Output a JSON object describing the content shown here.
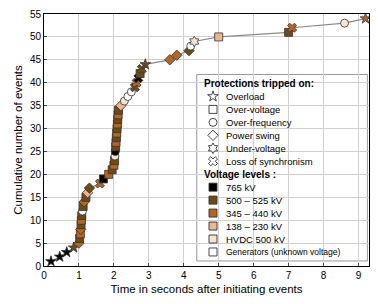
{
  "chart_data": {
    "type": "scatter",
    "xlabel": "Time in seconds after initiating events",
    "ylabel": "Cumulative number of events",
    "xlim": [
      0,
      9.3
    ],
    "xticks": [
      0,
      1,
      2,
      3,
      4,
      5,
      6,
      7,
      8,
      9
    ],
    "ylim": [
      0,
      55
    ],
    "yticks": [
      0,
      5,
      10,
      15,
      20,
      25,
      30,
      35,
      40,
      45,
      50,
      55
    ],
    "grid": true,
    "legend": "lower right",
    "color": "#8c8c8c",
    "line_style": "solid",
    "x": [
      0.2,
      0.45,
      0.65,
      0.85,
      1.0,
      1.02,
      1.04,
      1.05,
      1.06,
      1.07,
      1.08,
      1.1,
      1.12,
      1.15,
      1.2,
      1.25,
      1.3,
      1.6,
      1.7,
      1.85,
      1.95,
      2.0,
      2.02,
      2.03,
      2.04,
      2.05,
      2.06,
      2.07,
      2.08,
      2.09,
      2.1,
      2.11,
      2.12,
      2.13,
      2.2,
      2.3,
      2.4,
      2.5,
      2.6,
      2.65,
      2.7,
      2.75,
      2.8,
      2.9,
      3.6,
      3.8,
      4.15,
      4.2,
      4.3,
      5.0,
      7.0,
      7.1,
      8.6,
      9.2
    ],
    "values": [
      1,
      2,
      3,
      4,
      5,
      6,
      7,
      8,
      9,
      10,
      11,
      12,
      13,
      14,
      15,
      16,
      17,
      18,
      19,
      20,
      21,
      22,
      23,
      24,
      25,
      26,
      27,
      28,
      29,
      30,
      31,
      32,
      33,
      34,
      35,
      36,
      37,
      38,
      39,
      40,
      41,
      42,
      43,
      44,
      45,
      46,
      47,
      48,
      49,
      50,
      51,
      52,
      53,
      54
    ],
    "protection": [
      "Overload",
      "Overload",
      "Overload",
      "Overload",
      "Power swing",
      "Over-voltage",
      "Over-voltage",
      "Power swing",
      "Over-voltage",
      "Over-voltage",
      "Over-voltage",
      "Over-frequency",
      "Over-voltage",
      "Power swing",
      "Over-voltage",
      "Power swing",
      "Power swing",
      "Loss of synchronism",
      "Over-voltage",
      "Over-voltage",
      "Over-voltage",
      "Over-voltage",
      "Over-voltage",
      "Over-frequency",
      "Over-frequency",
      "Over-voltage",
      "Over-voltage",
      "Over-voltage",
      "Over-voltage",
      "Over-voltage",
      "Over-voltage",
      "Over-voltage",
      "Over-voltage",
      "Over-voltage",
      "Power swing",
      "Over-frequency",
      "Over-frequency",
      "Over-frequency",
      "Loss of synchronism",
      "Loss of synchronism",
      "Loss of synchronism",
      "Over-voltage",
      "Loss of synchronism",
      "Overload",
      "Power swing",
      "Power swing",
      "Power swing",
      "Over-frequency",
      "Under-voltage",
      "Over-voltage",
      "Over-voltage",
      "Loss of synchronism",
      "Over-frequency",
      "Overload"
    ],
    "colors": [
      "#000000",
      "#000000",
      "#000000",
      "#6e4b12",
      "#b8651e",
      "#6e4b12",
      "#b8651e",
      "#b8651e",
      "#6e4b12",
      "#b8651e",
      "#6e4b12",
      "#ffffff",
      "#6e4b12",
      "#b8651e",
      "#6e4b12",
      "#eeb48a",
      "#6e4b12",
      "#b8651e",
      "#000000",
      "#b8651e",
      "#6e4b12",
      "#b8651e",
      "#6e4b12",
      "#fbe3cf",
      "#000000",
      "#6e4b12",
      "#b8651e",
      "#6e4b12",
      "#b8651e",
      "#6e4b12",
      "#b8651e",
      "#6e4b12",
      "#b8651e",
      "#6e4b12",
      "#eeb48a",
      "#fbe3cf",
      "#ffffff",
      "#ffffff",
      "#6e4b12",
      "#b8651e",
      "#000000",
      "#6e4b12",
      "#6e4b12",
      "#6e4b12",
      "#b8651e",
      "#b8651e",
      "#6e4b12",
      "#ffffff",
      "#fbe3cf",
      "#eeb48a",
      "#6e4b12",
      "#b8651e",
      "#fbe3cf",
      "#b8651e"
    ],
    "protections_title": "Protections tripped on:",
    "protections": [
      {
        "name": "Overload",
        "marker": "star"
      },
      {
        "name": "Over-voltage",
        "marker": "square"
      },
      {
        "name": "Over-frequency",
        "marker": "circle"
      },
      {
        "name": "Power swing",
        "marker": "diamond"
      },
      {
        "name": "Under-voltage",
        "marker": "hexagram"
      },
      {
        "name": "Loss of synchronism",
        "marker": "x"
      }
    ],
    "voltage_title": "Voltage levels :",
    "voltage_levels": [
      {
        "name": "765 kV",
        "color": "#000000"
      },
      {
        "name": "500 – 525 kV",
        "color": "#6e4b12"
      },
      {
        "name": "345 – 440 kV",
        "color": "#b8651e"
      },
      {
        "name": "138 – 230 kV",
        "color": "#eeb48a"
      },
      {
        "name": "HVDC 500 kV",
        "color": "#fbe3cf"
      },
      {
        "name": "Generators (unknown voltage)",
        "color": "#ffffff"
      }
    ]
  }
}
